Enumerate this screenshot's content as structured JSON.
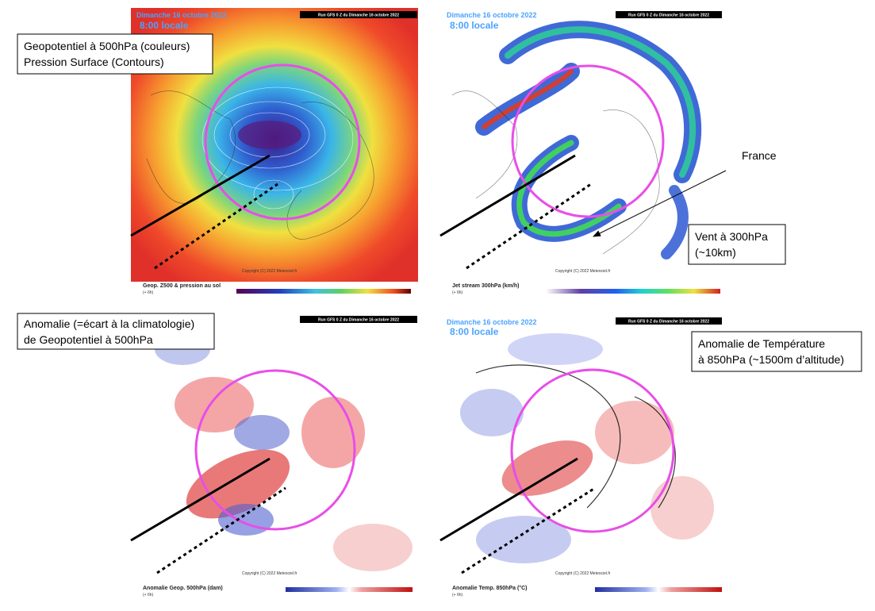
{
  "panels": [
    {
      "date": "Dimanche 16 octobre 2022",
      "time": "8:00 locale",
      "run": "Run GFS 0 Z du Dimanche 16 octobre 2022",
      "caption": "Geop. Z500 & pression au sol",
      "step": "(+ 6h)",
      "copyright": "Copyright (C) 2022 Meteociel.fr"
    },
    {
      "date": "Dimanche 16 octobre 2022",
      "time": "8:00 locale",
      "run": "Run GFS 0 Z du Dimanche 16 octobre 2022",
      "caption": "Jet stream 300hPa (km/h)",
      "step": "(+ 6h)",
      "copyright": "Copyright (C) 2022 Meteociel.fr"
    },
    {
      "run": "Run GFS 0 Z du Dimanche 16 octobre 2022",
      "caption": "Anomalie Geop. 500hPa (dam)",
      "step": "(+ 6h)",
      "copyright": "Copyright (C) 2022 Meteociel.fr"
    },
    {
      "date": "Dimanche 16 octobre 2022",
      "time": "8:00 locale",
      "run": "Run GFS 0 Z du Dimanche 16 octobre 2022",
      "caption": "Anomalie Temp. 850hPa (°C)",
      "step": "(+ 6h)",
      "copyright": "Copyright (C) 2022 Meteociel.fr"
    }
  ],
  "annotations": [
    {
      "lines": [
        "Geopotentiel à 500hPa (couleurs)",
        "Pression Surface (Contours)"
      ]
    },
    {
      "lines": [
        "Vent à 300hPa",
        "(~10km)"
      ]
    },
    {
      "lines": [
        "Anomalie (=écart à la climatologie)",
        "de Geopotentiel à 500hPa"
      ]
    },
    {
      "lines": [
        "Anomalie de Température",
        "à 850hPa (~1500m d’altitude)"
      ]
    }
  ],
  "france_label": "France"
}
